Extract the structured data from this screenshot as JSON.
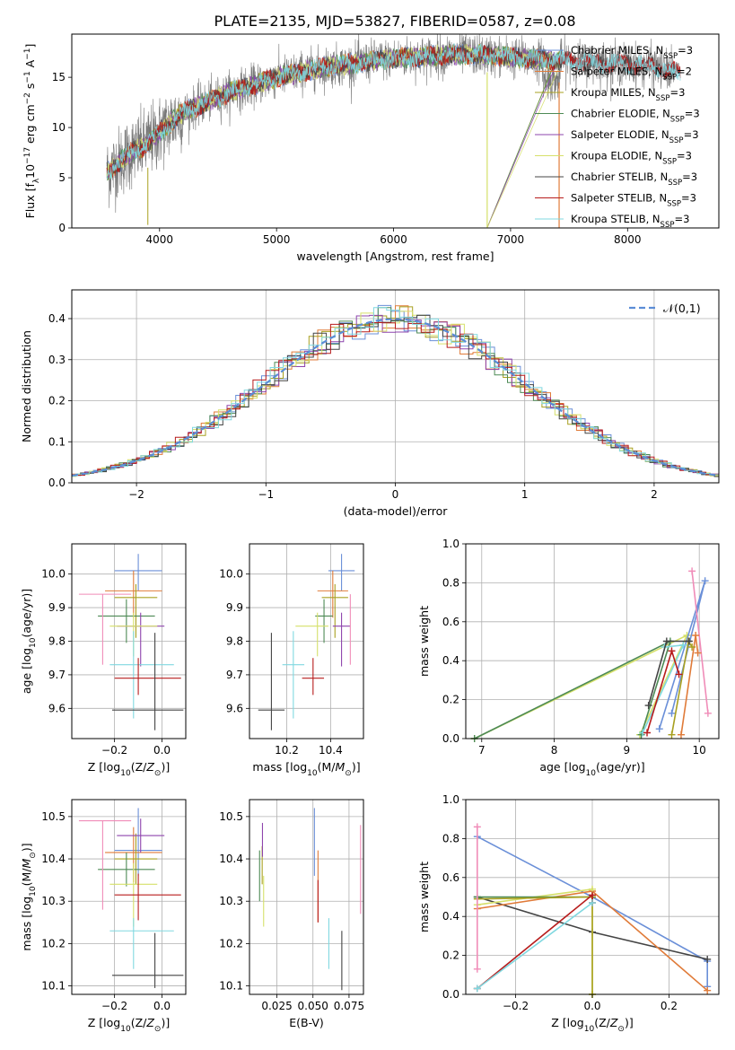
{
  "figure": {
    "title": "PLATE=2135, MJD=53827, FIBERID=0587, z=0.08"
  },
  "colors": {
    "Chabrier MILES": "#6a8fd8",
    "Salpeter MILES": "#e07b39",
    "Kroupa MILES": "#a8a020",
    "Chabrier ELODIE": "#4d8a55",
    "Salpeter ELODIE": "#8e44ad",
    "Kroupa ELODIE": "#d6e06a",
    "Chabrier STELIB": "#444444",
    "Salpeter STELIB": "#b71c1c",
    "Kroupa STELIB": "#80d8e0",
    "extra_pink": "#f08cb8"
  },
  "chart_data": [
    {
      "id": "spectrum",
      "type": "line",
      "xlabel": "wavelength [Angstrom, rest frame]",
      "ylabel": "Flux [f_λ10^-17 erg cm^-2 s^-1 A^-1]",
      "xlim": [
        3250,
        8780
      ],
      "ylim": [
        0,
        19.3
      ],
      "xticks": [
        4000,
        5000,
        6000,
        7000,
        8000
      ],
      "yticks": [
        0,
        5,
        10,
        15
      ],
      "grid": false,
      "legend_position": "top-right",
      "spectrum_profile": {
        "x": [
          3550,
          3650,
          3750,
          3850,
          3950,
          4050,
          4200,
          4400,
          4600,
          4800,
          5000,
          5200,
          5400,
          5600,
          5800,
          6000,
          6200,
          6400,
          6600,
          6800,
          7000,
          7200,
          7400,
          7600,
          7800,
          8000,
          8200,
          8400
        ],
        "y": [
          5.5,
          6.5,
          7.5,
          8,
          9,
          10,
          11.5,
          12.5,
          13.5,
          14.2,
          15,
          15.5,
          16,
          16.3,
          16.6,
          16.9,
          17,
          17.2,
          17.3,
          17.2,
          17,
          16.8,
          16.7,
          16.6,
          16.4,
          16.3,
          16.1,
          15.5
        ]
      },
      "series": [
        {
          "name": "Chabrier MILES, N_SSP=3"
        },
        {
          "name": "Salpeter MILES, N_SSP=2"
        },
        {
          "name": "Kroupa MILES, N_SSP=3"
        },
        {
          "name": "Chabrier ELODIE, N_SSP=3"
        },
        {
          "name": "Salpeter ELODIE, N_SSP=3"
        },
        {
          "name": "Kroupa ELODIE, N_SSP=3"
        },
        {
          "name": "Chabrier STELIB, N_SSP=3"
        },
        {
          "name": "Salpeter STELIB, N_SSP=3"
        },
        {
          "name": "Kroupa STELIB, N_SSP=3"
        }
      ]
    },
    {
      "id": "residuals",
      "type": "bar",
      "xlabel": "(data-model)/error",
      "ylabel": "Normed distribution",
      "xlim": [
        -2.5,
        2.5
      ],
      "ylim": [
        0,
        0.47
      ],
      "xticks": [
        -2,
        -1,
        0,
        1,
        2
      ],
      "yticks": [
        0.0,
        0.1,
        0.2,
        0.3,
        0.4
      ],
      "grid": true,
      "legend_position": "top-right",
      "reference_curve": {
        "name": "𝒩(0,1)",
        "mean": 0,
        "sigma": 1
      },
      "bin_width": 0.1
    },
    {
      "id": "age-vs-Z",
      "type": "scatter",
      "xlabel": "Z [log10(Z/Z⊙)]",
      "ylabel": "age [log10(age/yr)]",
      "xlim": [
        -0.38,
        0.1
      ],
      "ylim": [
        9.51,
        10.09
      ],
      "xticks": [
        -0.2,
        0.0
      ],
      "yticks": [
        9.6,
        9.7,
        9.8,
        9.9,
        10.0
      ],
      "grid": true,
      "points": [
        {
          "c": "Chabrier MILES",
          "x": -0.1,
          "xe": [
            0.1,
            0.1
          ],
          "y": 10.01,
          "ye": [
            0.06,
            0.05
          ]
        },
        {
          "c": "Salpeter MILES",
          "x": -0.12,
          "xe": [
            0.12,
            0.12
          ],
          "y": 9.95,
          "ye": [
            0.08,
            0.06
          ]
        },
        {
          "c": "Kroupa MILES",
          "x": -0.11,
          "xe": [
            0.09,
            0.09
          ],
          "y": 9.93,
          "ye": [
            0.12,
            0.04
          ]
        },
        {
          "c": "Chabrier ELODIE",
          "x": -0.15,
          "xe": [
            0.12,
            0.12
          ],
          "y": 9.875,
          "ye": [
            0.08,
            0.05
          ]
        },
        {
          "c": "Salpeter ELODIE",
          "x": -0.09,
          "xe": [
            0.1,
            0.1
          ],
          "y": 9.845,
          "ye": [
            0.12,
            0.04
          ]
        },
        {
          "c": "Kroupa ELODIE",
          "x": -0.12,
          "xe": [
            0.1,
            0.1
          ],
          "y": 9.845,
          "ye": [
            0.09,
            0.04
          ]
        },
        {
          "c": "extra_pink",
          "x": -0.25,
          "xe": [
            0.1,
            0.12
          ],
          "y": 9.94,
          "ye": [
            0.21,
            0.0
          ]
        },
        {
          "c": "Kroupa STELIB",
          "x": -0.12,
          "xe": [
            0.1,
            0.17
          ],
          "y": 9.73,
          "ye": [
            0.16,
            0.1
          ]
        },
        {
          "c": "Salpeter STELIB",
          "x": -0.1,
          "xe": [
            0.1,
            0.18
          ],
          "y": 9.69,
          "ye": [
            0.05,
            0.06
          ]
        },
        {
          "c": "Chabrier STELIB",
          "x": -0.03,
          "xe": [
            0.18,
            0.12
          ],
          "y": 9.595,
          "ye": [
            0.06,
            0.23
          ]
        }
      ]
    },
    {
      "id": "age-vs-mass",
      "type": "scatter",
      "xlabel": "mass [log10(M/M⊙)]",
      "ylabel": "",
      "xlim": [
        10.03,
        10.55
      ],
      "ylim": [
        9.51,
        10.09
      ],
      "xticks": [
        10.2,
        10.4
      ],
      "yticks": [
        9.6,
        9.7,
        9.8,
        9.9,
        10.0
      ],
      "grid": true,
      "points": [
        {
          "c": "Chabrier MILES",
          "x": 10.45,
          "xe": [
            0.06,
            0.06
          ],
          "y": 10.01,
          "ye": [
            0.06,
            0.05
          ]
        },
        {
          "c": "Salpeter MILES",
          "x": 10.41,
          "xe": [
            0.07,
            0.07
          ],
          "y": 9.95,
          "ye": [
            0.08,
            0.06
          ]
        },
        {
          "c": "Kroupa MILES",
          "x": 10.42,
          "xe": [
            0.06,
            0.06
          ],
          "y": 9.93,
          "ye": [
            0.12,
            0.04
          ]
        },
        {
          "c": "Chabrier ELODIE",
          "x": 10.37,
          "xe": [
            0.04,
            0.04
          ],
          "y": 9.875,
          "ye": [
            0.08,
            0.05
          ]
        },
        {
          "c": "Salpeter ELODIE",
          "x": 10.45,
          "xe": [
            0.04,
            0.04
          ],
          "y": 9.845,
          "ye": [
            0.12,
            0.04
          ]
        },
        {
          "c": "Kroupa ELODIE",
          "x": 10.34,
          "xe": [
            0.1,
            0.05
          ],
          "y": 9.845,
          "ye": [
            0.09,
            0.04
          ]
        },
        {
          "c": "extra_pink",
          "x": 10.49,
          "xe": [
            0.0,
            0.0
          ],
          "y": 9.94,
          "ye": [
            0.21,
            0.0
          ]
        },
        {
          "c": "Kroupa STELIB",
          "x": 10.23,
          "xe": [
            0.05,
            0.05
          ],
          "y": 9.73,
          "ye": [
            0.16,
            0.1
          ]
        },
        {
          "c": "Salpeter STELIB",
          "x": 10.32,
          "xe": [
            0.05,
            0.05
          ],
          "y": 9.69,
          "ye": [
            0.05,
            0.06
          ]
        },
        {
          "c": "Chabrier STELIB",
          "x": 10.13,
          "xe": [
            0.06,
            0.06
          ],
          "y": 9.595,
          "ye": [
            0.06,
            0.23
          ]
        }
      ]
    },
    {
      "id": "weight-vs-age",
      "type": "line",
      "xlabel": "age [log10(age/yr)]",
      "ylabel": "mass weight",
      "xlim": [
        6.78,
        10.27
      ],
      "ylim": [
        0,
        1.0
      ],
      "xticks": [
        7,
        8,
        9,
        10
      ],
      "yticks": [
        0.0,
        0.2,
        0.4,
        0.6,
        0.8,
        1.0
      ],
      "grid": true,
      "series": [
        {
          "c": "Kroupa ELODIE",
          "x": [
            6.9,
            9.83,
            9.18
          ],
          "y": [
            0.0,
            0.53,
            0.02
          ]
        },
        {
          "c": "Chabrier ELODIE",
          "x": [
            6.9,
            9.6,
            9.2
          ],
          "y": [
            0.0,
            0.5,
            0.02
          ]
        },
        {
          "c": "Chabrier MILES",
          "x": [
            9.45,
            10.08,
            9.62
          ],
          "y": [
            0.05,
            0.81,
            0.13
          ]
        },
        {
          "c": "extra_pink",
          "x": [
            9.9,
            10.12
          ],
          "y": [
            0.86,
            0.13
          ]
        },
        {
          "c": "Salpeter MILES",
          "x": [
            9.75,
            9.95,
            9.98
          ],
          "y": [
            0.02,
            0.53,
            0.44
          ]
        },
        {
          "c": "Kroupa MILES",
          "x": [
            9.62,
            9.85,
            9.9
          ],
          "y": [
            0.02,
            0.5,
            0.47
          ]
        },
        {
          "c": "Kroupa STELIB",
          "x": [
            9.22,
            9.78,
            9.52
          ],
          "y": [
            0.03,
            0.48,
            0.47
          ]
        },
        {
          "c": "Salpeter STELIB",
          "x": [
            9.28,
            9.62,
            9.72
          ],
          "y": [
            0.03,
            0.45,
            0.33
          ]
        },
        {
          "c": "Chabrier STELIB",
          "x": [
            9.3,
            9.55,
            9.86
          ],
          "y": [
            0.17,
            0.5,
            0.5
          ]
        }
      ]
    },
    {
      "id": "mass-vs-Z",
      "type": "scatter",
      "xlabel": "Z [log10(Z/Z⊙)]",
      "ylabel": "mass [log10(M/M⊙)]",
      "xlim": [
        -0.38,
        0.1
      ],
      "ylim": [
        10.08,
        10.54
      ],
      "xticks": [
        -0.2,
        0.0
      ],
      "yticks": [
        10.1,
        10.2,
        10.3,
        10.4,
        10.5
      ],
      "grid": true,
      "points": [
        {
          "c": "Chabrier MILES",
          "x": -0.1,
          "xe": [
            0.1,
            0.1
          ],
          "y": 10.42,
          "ye": [
            0.06,
            0.1
          ]
        },
        {
          "c": "Salpeter MILES",
          "x": -0.12,
          "xe": [
            0.12,
            0.12
          ],
          "y": 10.415,
          "ye": [
            0.07,
            0.06
          ]
        },
        {
          "c": "Kroupa MILES",
          "x": -0.11,
          "xe": [
            0.09,
            0.09
          ],
          "y": 10.4,
          "ye": [
            0.06,
            0.06
          ]
        },
        {
          "c": "Chabrier ELODIE",
          "x": -0.15,
          "xe": [
            0.12,
            0.12
          ],
          "y": 10.375,
          "ye": [
            0.04,
            0.04
          ]
        },
        {
          "c": "Salpeter ELODIE",
          "x": -0.09,
          "xe": [
            0.1,
            0.1
          ],
          "y": 10.455,
          "ye": [
            0.04,
            0.04
          ]
        },
        {
          "c": "Kroupa ELODIE",
          "x": -0.12,
          "xe": [
            0.1,
            0.1
          ],
          "y": 10.34,
          "ye": [
            0.1,
            0.05
          ]
        },
        {
          "c": "extra_pink",
          "x": -0.25,
          "xe": [
            0.1,
            0.12
          ],
          "y": 10.49,
          "ye": [
            0.21,
            0.0
          ]
        },
        {
          "c": "Kroupa STELIB",
          "x": -0.12,
          "xe": [
            0.1,
            0.17
          ],
          "y": 10.23,
          "ye": [
            0.09,
            0.03
          ]
        },
        {
          "c": "Salpeter STELIB",
          "x": -0.1,
          "xe": [
            0.1,
            0.18
          ],
          "y": 10.315,
          "ye": [
            0.06,
            0.05
          ]
        },
        {
          "c": "Chabrier STELIB",
          "x": -0.03,
          "xe": [
            0.18,
            0.12
          ],
          "y": 10.125,
          "ye": [
            0.03,
            0.1
          ]
        }
      ]
    },
    {
      "id": "mass-vs-ebv",
      "type": "scatter",
      "xlabel": "E(B-V)",
      "ylabel": "",
      "xlim": [
        0.006,
        0.085
      ],
      "ylim": [
        10.08,
        10.54
      ],
      "xticks": [
        0.025,
        0.05,
        0.075
      ],
      "yticks": [
        10.1,
        10.2,
        10.3,
        10.4,
        10.5
      ],
      "grid": true,
      "points": [
        {
          "c": "Chabrier MILES",
          "x": 0.051,
          "xe": [
            0,
            0
          ],
          "y": 10.42,
          "ye": [
            0.06,
            0.1
          ]
        },
        {
          "c": "Salpeter MILES",
          "x": 0.0535,
          "xe": [
            0,
            0
          ],
          "y": 10.35,
          "ye": [
            0.1,
            0.07
          ]
        },
        {
          "c": "Kroupa MILES",
          "x": 0.0148,
          "xe": [
            0,
            0
          ],
          "y": 10.4,
          "ye": [
            0.06,
            0.03
          ]
        },
        {
          "c": "Chabrier ELODIE",
          "x": 0.013,
          "xe": [
            0,
            0
          ],
          "y": 10.36,
          "ye": [
            0.06,
            0.06
          ]
        },
        {
          "c": "Salpeter ELODIE",
          "x": 0.015,
          "xe": [
            0,
            0
          ],
          "y": 10.445,
          "ye": [
            0.04,
            0.04
          ]
        },
        {
          "c": "Kroupa ELODIE",
          "x": 0.0158,
          "xe": [
            0,
            0
          ],
          "y": 10.3,
          "ye": [
            0.06,
            0.06
          ]
        },
        {
          "c": "extra_pink",
          "x": 0.083,
          "xe": [
            0,
            0
          ],
          "y": 10.38,
          "ye": [
            0.11,
            0.1
          ]
        },
        {
          "c": "Kroupa STELIB",
          "x": 0.061,
          "xe": [
            0,
            0
          ],
          "y": 10.2,
          "ye": [
            0.06,
            0.06
          ]
        },
        {
          "c": "Salpeter STELIB",
          "x": 0.0535,
          "xe": [
            0,
            0
          ],
          "y": 10.3,
          "ye": [
            0.05,
            0.05
          ]
        },
        {
          "c": "Chabrier STELIB",
          "x": 0.07,
          "xe": [
            0,
            0
          ],
          "y": 10.16,
          "ye": [
            0.07,
            0.07
          ]
        }
      ]
    },
    {
      "id": "weight-vs-Z",
      "type": "line",
      "xlabel": "Z [log10(Z/Z⊙)]",
      "ylabel": "mass weight",
      "xlim": [
        -0.33,
        0.33
      ],
      "ylim": [
        0,
        1.0
      ],
      "xticks": [
        -0.2,
        0.0,
        0.2
      ],
      "yticks": [
        0.0,
        0.2,
        0.4,
        0.6,
        0.8,
        1.0
      ],
      "grid": true,
      "series": [
        {
          "c": "Chabrier MILES",
          "x": [
            -0.3,
            0.0,
            0.3,
            0.3
          ],
          "y": [
            0.81,
            0.5,
            0.17,
            0.04
          ]
        },
        {
          "c": "Chabrier STELIB",
          "x": [
            -0.3,
            0.0,
            0.3
          ],
          "y": [
            0.5,
            0.32,
            0.18
          ]
        },
        {
          "c": "Salpeter MILES",
          "x": [
            -0.3,
            0.0,
            0.3
          ],
          "y": [
            0.44,
            0.53,
            0.02
          ]
        },
        {
          "c": "Kroupa ELODIE",
          "x": [
            -0.3,
            0.0,
            0.0
          ],
          "y": [
            0.46,
            0.54,
            0.0
          ]
        },
        {
          "c": "Chabrier ELODIE",
          "x": [
            -0.3,
            0.0
          ],
          "y": [
            0.5,
            0.5
          ]
        },
        {
          "c": "Kroupa MILES",
          "x": [
            -0.3,
            0.0,
            0.0
          ],
          "y": [
            0.49,
            0.5,
            0.0
          ]
        },
        {
          "c": "Salpeter STELIB",
          "x": [
            -0.3,
            0.0,
            0.0
          ],
          "y": [
            0.03,
            0.51,
            0.47
          ]
        },
        {
          "c": "Kroupa STELIB",
          "x": [
            -0.3,
            0.0
          ],
          "y": [
            0.03,
            0.47
          ]
        },
        {
          "c": "extra_pink",
          "x": [
            -0.3,
            -0.3
          ],
          "y": [
            0.86,
            0.13
          ]
        }
      ]
    }
  ]
}
